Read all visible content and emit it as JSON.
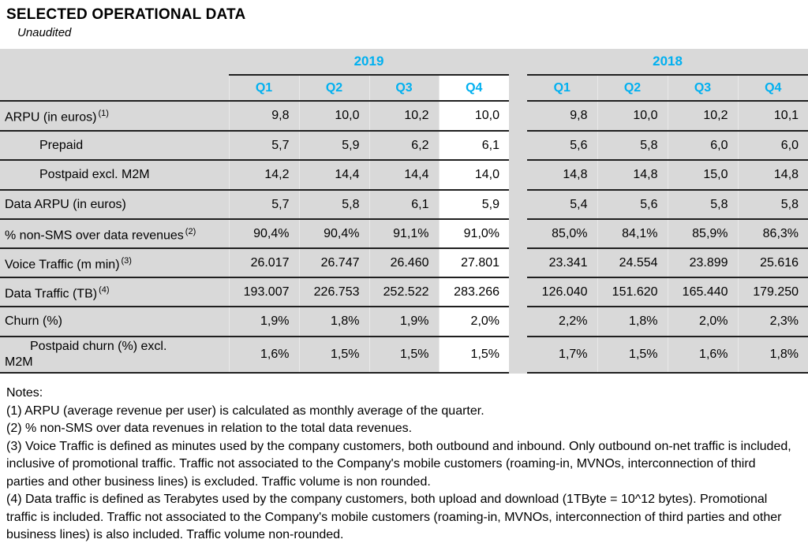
{
  "page": {
    "title": "SELECTED OPERATIONAL DATA",
    "subtitle": "Unaudited"
  },
  "table": {
    "groups": [
      {
        "year": "2019",
        "quarters": [
          "Q1",
          "Q2",
          "Q3",
          "Q4"
        ]
      },
      {
        "year": "2018",
        "quarters": [
          "Q1",
          "Q2",
          "Q3",
          "Q4"
        ]
      }
    ],
    "highlight": {
      "year": "2019",
      "quarter": "Q4"
    },
    "rows": [
      {
        "label": "ARPU (in euros)",
        "footnote": "(1)",
        "indent": 0,
        "y2019": [
          "9,8",
          "10,0",
          "10,2",
          "10,0"
        ],
        "y2018": [
          "9,8",
          "10,0",
          "10,2",
          "10,1"
        ]
      },
      {
        "label": "Prepaid",
        "indent": 1,
        "y2019": [
          "5,7",
          "5,9",
          "6,2",
          "6,1"
        ],
        "y2018": [
          "5,6",
          "5,8",
          "6,0",
          "6,0"
        ]
      },
      {
        "label": "Postpaid excl. M2M",
        "indent": 1,
        "y2019": [
          "14,2",
          "14,4",
          "14,4",
          "14,0"
        ],
        "y2018": [
          "14,8",
          "14,8",
          "15,0",
          "14,8"
        ]
      },
      {
        "label": "Data ARPU (in euros)",
        "indent": 0,
        "y2019": [
          "5,7",
          "5,8",
          "6,1",
          "5,9"
        ],
        "y2018": [
          "5,4",
          "5,6",
          "5,8",
          "5,8"
        ]
      },
      {
        "label": "% non-SMS over data revenues",
        "footnote": "(2)",
        "indent": 0,
        "y2019": [
          "90,4%",
          "90,4%",
          "91,1%",
          "91,0%"
        ],
        "y2018": [
          "85,0%",
          "84,1%",
          "85,9%",
          "86,3%"
        ]
      },
      {
        "label": "Voice Traffic (m min)",
        "footnote": "(3)",
        "indent": 0,
        "y2019": [
          "26.017",
          "26.747",
          "26.460",
          "27.801"
        ],
        "y2018": [
          "23.341",
          "24.554",
          "23.899",
          "25.616"
        ]
      },
      {
        "label": "Data Traffic (TB)",
        "footnote": "(4)",
        "indent": 0,
        "y2019": [
          "193.007",
          "226.753",
          "252.522",
          "283.266"
        ],
        "y2018": [
          "126.040",
          "151.620",
          "165.440",
          "179.250"
        ]
      },
      {
        "label": "Churn (%)",
        "indent": 0,
        "y2019": [
          "1,9%",
          "1,8%",
          "1,9%",
          "2,0%"
        ],
        "y2018": [
          "2,2%",
          "1,8%",
          "2,0%",
          "2,3%"
        ]
      },
      {
        "label": "Postpaid churn (%) excl.",
        "label2": "M2M",
        "indent": 2,
        "y2019": [
          "1,6%",
          "1,5%",
          "1,5%",
          "1,5%"
        ],
        "y2018": [
          "1,7%",
          "1,5%",
          "1,6%",
          "1,8%"
        ]
      }
    ]
  },
  "notes": {
    "heading": "Notes:",
    "items": [
      "(1) ARPU (average revenue per user) is calculated as monthly average of the quarter.",
      "(2) % non-SMS over data revenues in relation to the total data revenues.",
      "(3) Voice Traffic is defined as minutes used by the company customers, both outbound and inbound. Only outbound on-net traffic is included, inclusive of promotional traffic. Traffic not associated to the Company's mobile customers (roaming-in, MVNOs, interconnection of third parties and other business lines) is excluded. Traffic volume is non rounded.",
      "(4) Data traffic is defined as Terabytes used by the company customers, both upload and download (1TByte = 10^12 bytes). Promotional traffic is included. Traffic not associated to the Company's mobile customers (roaming-in, MVNOs, interconnection of third parties and other business lines) is also included. Traffic volume non-rounded."
    ]
  },
  "colors": {
    "accent": "#00b0f0",
    "table_bg": "#d9d9d9",
    "highlight_bg": "#ffffff",
    "border": "#1f1f1f",
    "text": "#000000"
  }
}
